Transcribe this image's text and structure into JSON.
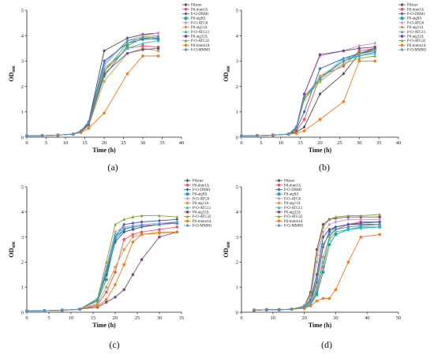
{
  "figure": {
    "panels": [
      "(a)",
      "(b)",
      "(c)",
      "(d)"
    ]
  },
  "series_styles": [
    {
      "name": "Pilsner",
      "color": "#4a4a4a",
      "marker": "diamond"
    },
    {
      "name": "Pil-dnm1Δ",
      "color": "#e8546a",
      "marker": "circle"
    },
    {
      "name": "P-O-DNM1",
      "color": "#2f5fb3",
      "marker": "diamond"
    },
    {
      "name": "Pil-atg8Δ",
      "color": "#1aa58a",
      "marker": "square"
    },
    {
      "name": "P-O-ATG8",
      "color": "#c98fd8",
      "marker": "diamond"
    },
    {
      "name": "Pil-atg11Δ",
      "color": "#c7a64a",
      "marker": "circle"
    },
    {
      "name": "P-O-ATG11",
      "color": "#35b9c9",
      "marker": "triangle"
    },
    {
      "name": "Pil-atg32Δ",
      "color": "#7a4a7a",
      "marker": "circle"
    },
    {
      "name": "P-O-ATG32",
      "color": "#8aa62a",
      "marker": "triangle"
    },
    {
      "name": "Pil-mmm1Δ",
      "color": "#f07a1e",
      "marker": "circle"
    },
    {
      "name": "P-O-MMM1",
      "color": "#4a8fd8",
      "marker": "diamond"
    }
  ],
  "chart_data": [
    {
      "type": "line",
      "panel_label": "(a)",
      "xlabel": "Time (h)",
      "ylabel": "OD600",
      "ylabel_main": "OD",
      "ylabel_sub": "600",
      "xlim": [
        0,
        40
      ],
      "ylim": [
        0,
        5
      ],
      "xticks": [
        0,
        5,
        10,
        15,
        20,
        25,
        30,
        35,
        40
      ],
      "yticks": [
        0,
        1,
        2,
        3,
        4,
        5
      ],
      "legend": "top-right",
      "x": [
        0,
        4,
        8,
        12,
        14,
        16,
        20,
        26,
        30,
        34
      ],
      "series": [
        {
          "name": "Pilsner",
          "values": [
            0.05,
            0.06,
            0.08,
            0.12,
            0.25,
            0.6,
            3.4,
            3.9,
            4.05,
            4.1
          ]
        },
        {
          "name": "Pil-dnm1Δ",
          "values": [
            0.05,
            0.06,
            0.08,
            0.12,
            0.22,
            0.5,
            2.6,
            3.5,
            3.6,
            3.55
          ]
        },
        {
          "name": "P-O-DNM1",
          "values": [
            0.05,
            0.06,
            0.08,
            0.12,
            0.24,
            0.6,
            3.0,
            3.7,
            3.85,
            3.9
          ]
        },
        {
          "name": "Pil-atg8Δ",
          "values": [
            0.05,
            0.06,
            0.08,
            0.12,
            0.22,
            0.5,
            2.4,
            3.6,
            3.9,
            3.85
          ]
        },
        {
          "name": "P-O-ATG8",
          "values": [
            0.05,
            0.06,
            0.08,
            0.12,
            0.24,
            0.55,
            2.8,
            3.8,
            4.0,
            4.1
          ]
        },
        {
          "name": "Pil-atg11Δ",
          "values": [
            0.05,
            0.06,
            0.08,
            0.12,
            0.2,
            0.45,
            2.2,
            3.3,
            3.5,
            3.4
          ]
        },
        {
          "name": "P-O-ATG11",
          "values": [
            0.05,
            0.06,
            0.08,
            0.12,
            0.24,
            0.55,
            2.7,
            3.5,
            3.7,
            3.8
          ]
        },
        {
          "name": "Pil-atg32Δ",
          "values": [
            0.05,
            0.06,
            0.08,
            0.12,
            0.22,
            0.5,
            2.5,
            3.3,
            3.45,
            3.5
          ]
        },
        {
          "name": "P-O-ATG32",
          "values": [
            0.05,
            0.06,
            0.08,
            0.12,
            0.24,
            0.55,
            2.6,
            3.7,
            3.95,
            4.0
          ]
        },
        {
          "name": "Pil-mmm1Δ",
          "values": [
            0.05,
            0.06,
            0.08,
            0.12,
            0.18,
            0.35,
            0.95,
            2.5,
            3.2,
            3.2
          ]
        },
        {
          "name": "P-O-MMM1",
          "values": [
            0.05,
            0.06,
            0.08,
            0.12,
            0.24,
            0.55,
            2.9,
            3.8,
            3.9,
            3.95
          ]
        }
      ]
    },
    {
      "type": "line",
      "panel_label": "(b)",
      "xlabel": "Time (h)",
      "ylabel": "OD600",
      "ylabel_main": "OD",
      "ylabel_sub": "600",
      "xlim": [
        0,
        40
      ],
      "ylim": [
        0,
        5
      ],
      "xticks": [
        0,
        5,
        10,
        15,
        20,
        25,
        30,
        35,
        40
      ],
      "yticks": [
        0,
        1,
        2,
        3,
        4,
        5
      ],
      "legend": "top-right",
      "x": [
        0,
        4,
        8,
        12,
        14,
        16,
        20,
        26,
        30,
        34
      ],
      "series": [
        {
          "name": "Pilsner",
          "values": [
            0.05,
            0.06,
            0.08,
            0.12,
            0.2,
            0.4,
            1.7,
            2.5,
            3.3,
            3.5
          ]
        },
        {
          "name": "Pil-dnm1Δ",
          "values": [
            0.05,
            0.06,
            0.08,
            0.12,
            0.25,
            0.7,
            2.4,
            2.8,
            3.4,
            3.5
          ]
        },
        {
          "name": "P-O-DNM1",
          "values": [
            0.05,
            0.06,
            0.08,
            0.12,
            0.3,
            1.0,
            2.7,
            3.1,
            3.3,
            3.4
          ]
        },
        {
          "name": "Pil-atg8Δ",
          "values": [
            0.05,
            0.06,
            0.08,
            0.12,
            0.35,
            1.5,
            2.3,
            3.0,
            3.3,
            3.45
          ]
        },
        {
          "name": "P-O-ATG8",
          "values": [
            0.05,
            0.06,
            0.08,
            0.12,
            0.4,
            1.7,
            3.2,
            3.4,
            3.6,
            3.7
          ]
        },
        {
          "name": "Pil-atg11Δ",
          "values": [
            0.05,
            0.06,
            0.08,
            0.12,
            0.35,
            1.5,
            2.4,
            3.0,
            3.25,
            3.4
          ]
        },
        {
          "name": "P-O-ATG11",
          "values": [
            0.05,
            0.06,
            0.08,
            0.12,
            0.35,
            1.6,
            2.3,
            3.1,
            3.2,
            3.3
          ]
        },
        {
          "name": "Pil-atg32Δ",
          "values": [
            0.05,
            0.06,
            0.08,
            0.12,
            0.4,
            1.7,
            3.25,
            3.4,
            3.5,
            3.55
          ]
        },
        {
          "name": "P-O-ATG32",
          "values": [
            0.05,
            0.06,
            0.08,
            0.12,
            0.35,
            1.5,
            2.2,
            2.9,
            3.1,
            3.2
          ]
        },
        {
          "name": "Pil-mmm1Δ",
          "values": [
            0.05,
            0.06,
            0.08,
            0.12,
            0.15,
            0.25,
            0.7,
            1.4,
            3.0,
            3.0
          ]
        },
        {
          "name": "P-O-MMM1",
          "values": [
            0.05,
            0.06,
            0.08,
            0.12,
            0.38,
            1.6,
            2.3,
            3.0,
            3.2,
            3.35
          ]
        }
      ]
    },
    {
      "type": "line",
      "panel_label": "(c)",
      "xlabel": "Time (h)",
      "ylabel": "OD600",
      "ylabel_main": "OD",
      "ylabel_sub": "600",
      "xlim": [
        0,
        35
      ],
      "ylim": [
        0,
        5
      ],
      "xticks": [
        0,
        5,
        10,
        15,
        20,
        25,
        30,
        35
      ],
      "yticks": [
        0,
        1,
        2,
        3,
        4,
        5
      ],
      "legend": "top-right",
      "x": [
        0,
        4,
        8,
        12,
        16,
        18,
        20,
        22,
        24,
        26,
        30,
        34
      ],
      "series": [
        {
          "name": "Pilsner",
          "values": [
            0.05,
            0.06,
            0.08,
            0.12,
            0.5,
            1.5,
            2.8,
            3.2,
            3.3,
            3.4,
            3.5,
            3.6
          ]
        },
        {
          "name": "Pil-dnm1Δ",
          "values": [
            0.05,
            0.06,
            0.08,
            0.12,
            0.3,
            0.8,
            1.6,
            2.9,
            3.1,
            3.2,
            3.3,
            3.4
          ]
        },
        {
          "name": "P-O-DNM1",
          "values": [
            0.05,
            0.06,
            0.08,
            0.12,
            0.5,
            1.6,
            3.0,
            3.5,
            3.55,
            3.6,
            3.65,
            3.7
          ]
        },
        {
          "name": "Pil-atg8Δ",
          "values": [
            0.05,
            0.06,
            0.08,
            0.12,
            0.45,
            1.3,
            2.9,
            3.3,
            3.4,
            3.45,
            3.5,
            3.55
          ]
        },
        {
          "name": "P-O-ATG8",
          "values": [
            0.05,
            0.06,
            0.08,
            0.12,
            0.5,
            1.8,
            3.2,
            3.4,
            3.45,
            3.5,
            3.55,
            3.6
          ]
        },
        {
          "name": "Pil-atg11Δ",
          "values": [
            0.05,
            0.06,
            0.08,
            0.12,
            0.35,
            1.0,
            1.8,
            2.5,
            3.0,
            3.1,
            3.2,
            3.2
          ]
        },
        {
          "name": "P-O-ATG11",
          "values": [
            0.05,
            0.06,
            0.08,
            0.12,
            0.5,
            1.7,
            3.1,
            3.35,
            3.4,
            3.45,
            3.5,
            3.55
          ]
        },
        {
          "name": "Pil-atg32Δ",
          "values": [
            0.05,
            0.06,
            0.08,
            0.12,
            0.2,
            0.4,
            0.6,
            0.9,
            1.5,
            2.1,
            3.0,
            3.2
          ]
        },
        {
          "name": "P-O-ATG32",
          "values": [
            0.05,
            0.06,
            0.08,
            0.12,
            0.55,
            2.0,
            3.5,
            3.7,
            3.8,
            3.85,
            3.85,
            3.8
          ]
        },
        {
          "name": "Pil-mmm1Δ",
          "values": [
            0.05,
            0.06,
            0.08,
            0.12,
            0.25,
            0.5,
            1.1,
            1.9,
            2.8,
            3.1,
            3.15,
            3.2
          ]
        },
        {
          "name": "P-O-MMM1",
          "values": [
            0.05,
            0.06,
            0.08,
            0.12,
            0.5,
            1.6,
            3.0,
            3.3,
            3.4,
            3.45,
            3.5,
            3.55
          ]
        }
      ]
    },
    {
      "type": "line",
      "panel_label": "(d)",
      "xlabel": "Time (h)",
      "ylabel": "OD600",
      "ylabel_main": "OD",
      "ylabel_sub": "600",
      "xlim": [
        0,
        50
      ],
      "ylim": [
        0,
        5
      ],
      "xticks": [
        0,
        10,
        20,
        30,
        40,
        50
      ],
      "yticks": [
        0,
        1,
        2,
        3,
        4,
        5
      ],
      "legend": "top-left",
      "x": [
        4,
        8,
        12,
        16,
        20,
        22,
        24,
        26,
        28,
        30,
        34,
        38,
        44
      ],
      "series": [
        {
          "name": "Pilsner",
          "values": [
            0.08,
            0.1,
            0.1,
            0.12,
            0.2,
            0.5,
            1.5,
            3.0,
            3.3,
            3.4,
            3.5,
            3.5,
            3.5
          ]
        },
        {
          "name": "Pil-dnm1Δ",
          "values": [
            0.08,
            0.1,
            0.1,
            0.12,
            0.18,
            0.3,
            0.8,
            1.8,
            3.0,
            3.3,
            3.5,
            3.6,
            3.6
          ]
        },
        {
          "name": "P-O-DNM1",
          "values": [
            0.08,
            0.1,
            0.1,
            0.12,
            0.2,
            0.4,
            1.2,
            2.6,
            3.2,
            3.4,
            3.5,
            3.55,
            3.6
          ]
        },
        {
          "name": "Pil-atg8Δ",
          "values": [
            0.08,
            0.1,
            0.1,
            0.12,
            0.18,
            0.3,
            0.7,
            1.6,
            2.7,
            3.1,
            3.3,
            3.4,
            3.4
          ]
        },
        {
          "name": "P-O-ATG8",
          "values": [
            0.08,
            0.1,
            0.1,
            0.12,
            0.22,
            0.6,
            2.0,
            3.2,
            3.5,
            3.6,
            3.7,
            3.7,
            3.7
          ]
        },
        {
          "name": "Pil-atg11Δ",
          "values": [
            0.08,
            0.1,
            0.1,
            0.12,
            0.2,
            0.4,
            1.0,
            2.2,
            3.0,
            3.3,
            3.4,
            3.45,
            3.5
          ]
        },
        {
          "name": "P-O-ATG11",
          "values": [
            0.08,
            0.1,
            0.1,
            0.12,
            0.18,
            0.35,
            0.9,
            2.0,
            2.9,
            3.2,
            3.3,
            3.35,
            3.4
          ]
        },
        {
          "name": "Pil-atg32Δ",
          "values": [
            0.08,
            0.1,
            0.1,
            0.12,
            0.25,
            0.8,
            2.5,
            3.5,
            3.7,
            3.75,
            3.8,
            3.8,
            3.8
          ]
        },
        {
          "name": "P-O-ATG32",
          "values": [
            0.08,
            0.1,
            0.1,
            0.12,
            0.25,
            0.7,
            2.3,
            3.4,
            3.7,
            3.8,
            3.85,
            3.85,
            3.9
          ]
        },
        {
          "name": "Pil-mmm1Δ",
          "values": [
            0.08,
            0.1,
            0.1,
            0.12,
            0.15,
            0.25,
            0.45,
            0.55,
            0.55,
            0.9,
            2.0,
            3.0,
            3.1
          ]
        },
        {
          "name": "P-O-MMM1",
          "values": [
            0.08,
            0.1,
            0.1,
            0.12,
            0.2,
            0.45,
            1.3,
            2.7,
            3.1,
            3.3,
            3.4,
            3.45,
            3.5
          ]
        }
      ]
    }
  ]
}
